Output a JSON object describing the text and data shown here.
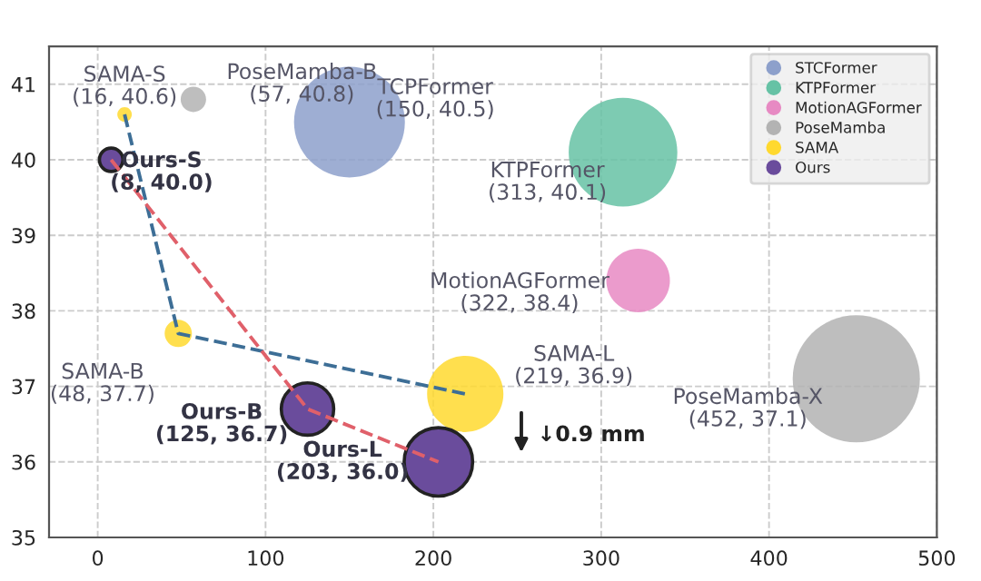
{
  "chart_data": {
    "type": "bubble",
    "ylim": [
      35,
      41.5
    ],
    "yticks": [
      35,
      36,
      37,
      38,
      39,
      40,
      41
    ],
    "xlim": [
      -29,
      500
    ],
    "xticks": [
      0,
      100,
      200,
      300,
      400,
      500
    ],
    "grid": true,
    "legend": "top right",
    "series": [
      {
        "name": "STCFormer",
        "color": "#8da0cb",
        "x": [
          150
        ],
        "values": [
          40.5
        ],
        "sizes": [
          0.76
        ]
      },
      {
        "name": "KTPFormer",
        "color": "#66c2a5",
        "x": [
          313
        ],
        "values": [
          40.1
        ],
        "sizes": [
          0.73
        ]
      },
      {
        "name": "MotionAGFormer",
        "color": "#e78ac3",
        "x": [
          322
        ],
        "values": [
          38.4
        ],
        "sizes": [
          0.25
        ]
      },
      {
        "name": "PoseMamba",
        "color": "#b3b3b3",
        "x": [
          57,
          452
        ],
        "values": [
          40.8,
          37.1
        ],
        "sizes": [
          0.04,
          1
        ]
      },
      {
        "name": "SAMA",
        "color": "#ffd92f",
        "x": [
          16,
          48,
          219
        ],
        "values": [
          40.6,
          37.7,
          36.9
        ],
        "sizes": [
          0.013,
          0.046,
          0.36
        ]
      },
      {
        "name": "Ours",
        "color": "#6a4c9c",
        "x": [
          8,
          125,
          203
        ],
        "values": [
          40.0,
          36.7,
          36.0
        ],
        "sizes": [
          0.034,
          0.17,
          0.29
        ]
      },
      {
        "type": "line",
        "color": "#3d6e96",
        "line_style": "dashed",
        "marker": "none",
        "x": [
          16,
          48,
          219
        ],
        "values": [
          40.6,
          37.7,
          36.9
        ]
      },
      {
        "type": "line",
        "color": "#e0606a",
        "line_style": "dashed",
        "marker": "none",
        "x": [
          8,
          125,
          203
        ],
        "values": [
          40.0,
          36.7,
          36.0
        ]
      }
    ],
    "annotations": [
      {
        "text": "SAMA-S\n(16, 40.6)",
        "x": 16,
        "y": 40.6
      },
      {
        "text": "PoseMamba-B\n(57, 40.8)",
        "x": 57,
        "y": 40.8
      },
      {
        "text": "TCPFormer\n(150, 40.5)",
        "x": 150,
        "y": 40.5
      },
      {
        "text": "Ours-S\n(8, 40.0)",
        "x": 8,
        "y": 40.0
      },
      {
        "text": "SAMA-B\n(48, 37.7)",
        "x": 48,
        "y": 37.7
      },
      {
        "text": "Ours-B\n(125, 36.7)",
        "x": 125,
        "y": 36.7
      },
      {
        "text": "Ours-L\n(203, 36.0)",
        "x": 203,
        "y": 36.0
      },
      {
        "text": "SAMA-L\n(219, 36.9)",
        "x": 219,
        "y": 36.9
      },
      {
        "text": "KTPFormer\n(313, 40.1)",
        "x": 313,
        "y": 40.1
      },
      {
        "text": "MotionAGFormer\n(322, 38.4)",
        "x": 322,
        "y": 38.4
      },
      {
        "text": "PoseMamba-X\n(452, 37.1)",
        "x": 452,
        "y": 37.1
      },
      "↓0.9 mm"
    ]
  }
}
